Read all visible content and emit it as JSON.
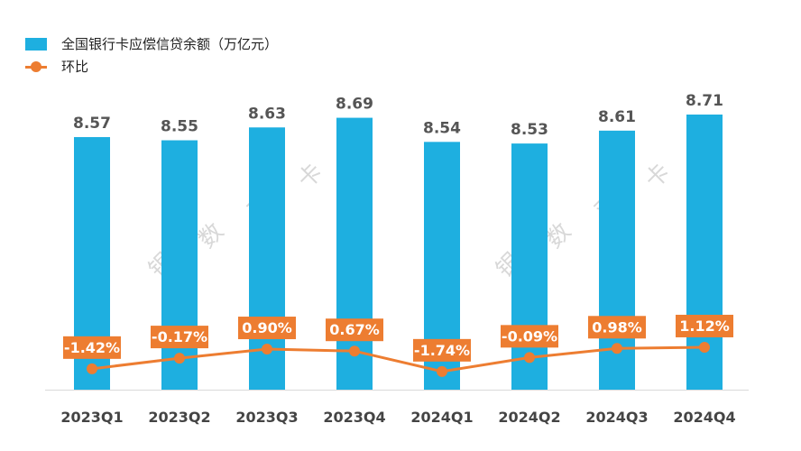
{
  "chart_data": {
    "type": "bar+line",
    "categories": [
      "2023Q1",
      "2023Q2",
      "2023Q3",
      "2023Q4",
      "2024Q1",
      "2024Q2",
      "2024Q3",
      "2024Q4"
    ],
    "series": [
      {
        "name": "全国银行卡应偿信贷余额（万亿元）",
        "type": "bar",
        "values": [
          8.57,
          8.55,
          8.63,
          8.69,
          8.54,
          8.53,
          8.61,
          8.71
        ],
        "labels": [
          "8.57",
          "8.55",
          "8.63",
          "8.69",
          "8.54",
          "8.53",
          "8.61",
          "8.71"
        ],
        "color": "#1EAFE0"
      },
      {
        "name": "环比",
        "type": "line",
        "values": [
          -1.42,
          -0.17,
          0.9,
          0.67,
          -1.74,
          -0.09,
          0.98,
          1.12
        ],
        "labels": [
          "-1.42%",
          "-0.17%",
          "0.90%",
          "0.67%",
          "-1.74%",
          "-0.09%",
          "0.98%",
          "1.12%"
        ],
        "color": "#ED7D31"
      }
    ],
    "ylim": [
      7.0,
      8.71
    ],
    "legend": "top-left",
    "grid": false,
    "watermark": [
      "银",
      "数",
      "观",
      "卡"
    ]
  }
}
